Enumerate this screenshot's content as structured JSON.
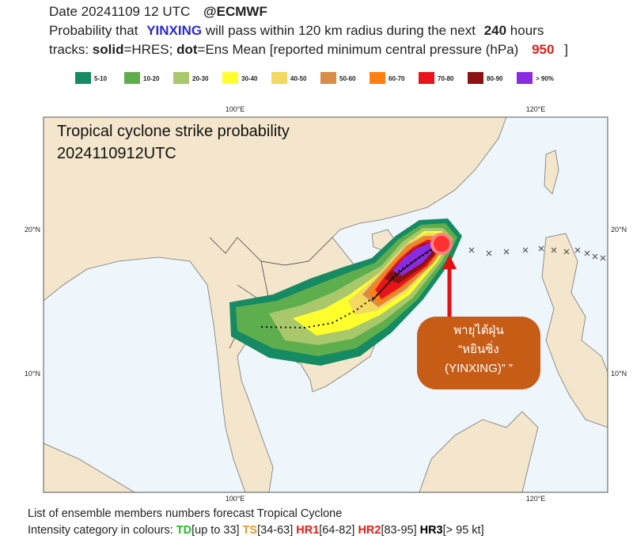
{
  "header": {
    "date": "Date 20241109 12 UTC",
    "source": "@ECMWF",
    "prob_prefix": "Probability that",
    "storm": "YINXING",
    "prob_middle": "will pass within 120 km radius during the next",
    "hours": "240",
    "hours_unit": "hours",
    "tracks_prefix": "tracks:",
    "solid": "solid",
    "solid_desc": "=HRES;",
    "dot": "dot",
    "dot_desc": "=Ens Mean [reported minimum central pressure (hPa)",
    "pressure": "950",
    "close": "]"
  },
  "legend": [
    {
      "label": "5-10",
      "color": "#168a63"
    },
    {
      "label": "10-20",
      "color": "#5fae4e"
    },
    {
      "label": "20-30",
      "color": "#a9c86c"
    },
    {
      "label": "30-40",
      "color": "#ffff2e"
    },
    {
      "label": "40-50",
      "color": "#f3d862"
    },
    {
      "label": "50-60",
      "color": "#d98d47"
    },
    {
      "label": "60-70",
      "color": "#ff7f10"
    },
    {
      "label": "70-80",
      "color": "#e8141a"
    },
    {
      "label": "80-90",
      "color": "#8c1212"
    },
    {
      "label": "> 90%",
      "color": "#8a2be2"
    }
  ],
  "map": {
    "title": "Tropical cyclone strike probability",
    "time": "2024110912UTC",
    "lon_labels": [
      "100°E",
      "120°E"
    ],
    "lat_labels": [
      "20°N",
      "10°N"
    ]
  },
  "callout": {
    "line1": "พายุไต้ฝุ่น",
    "line2": "“หยินซิ่ง",
    "line3": "(YINXING)” ”"
  },
  "footer": {
    "line1": "List of ensemble members numbers forecast Tropical Cyclone",
    "intensity_label": "Intensity category in colours:",
    "categories": [
      {
        "code": "TD",
        "range": "[up to 33]",
        "color": "#22c022"
      },
      {
        "code": "TS",
        "range": "[34-63]",
        "color": "#e8992c"
      },
      {
        "code": "HR1",
        "range": "[64-82]",
        "color": "#e0201a"
      },
      {
        "code": "HR2",
        "range": "[83-95]",
        "color": "#e0201a"
      },
      {
        "code": "HR3",
        "range": "[> 95 kt]",
        "color": "#000000"
      }
    ]
  }
}
